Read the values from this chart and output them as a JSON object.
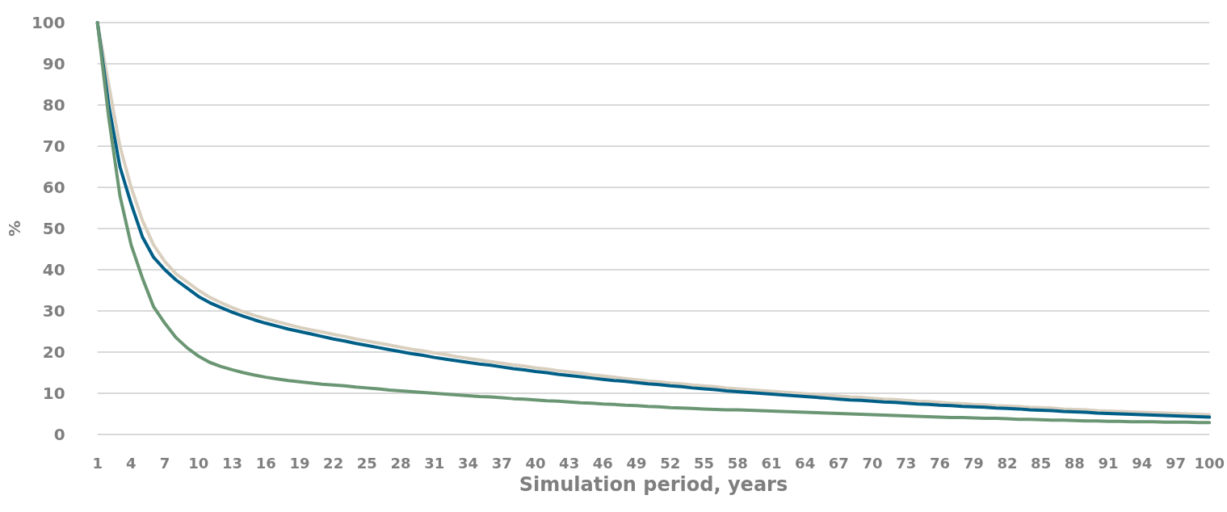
{
  "chart_data": {
    "type": "line",
    "xlabel": "Simulation period, years",
    "ylabel": "%",
    "categories": [
      "1",
      null,
      null,
      "4",
      null,
      null,
      "7",
      null,
      null,
      "10",
      null,
      null,
      "13",
      null,
      null,
      "16",
      null,
      null,
      "19",
      null,
      null,
      "22",
      null,
      null,
      "25",
      null,
      null,
      "28",
      null,
      null,
      "31",
      null,
      null,
      "34",
      null,
      null,
      "37",
      null,
      null,
      "40",
      null,
      null,
      "43",
      null,
      null,
      "46",
      null,
      null,
      "49",
      null,
      null,
      "52",
      null,
      null,
      "55",
      null,
      null,
      "58",
      null,
      null,
      "61",
      null,
      null,
      "64",
      null,
      null,
      "67",
      null,
      null,
      "70",
      null,
      null,
      "73",
      null,
      null,
      "76",
      null,
      null,
      "79",
      null,
      null,
      "82",
      null,
      null,
      "85",
      null,
      null,
      "88",
      null,
      null,
      "91",
      null,
      null,
      "94",
      null,
      null,
      "97",
      null,
      null,
      "100"
    ],
    "series": [
      {
        "color": "#d9cfbf",
        "values": [
          100,
          85,
          70,
          60,
          52,
          46,
          42,
          39,
          37,
          35,
          33.3,
          32,
          30.8,
          29.8,
          28.9,
          28.1,
          27.4,
          26.7,
          26,
          25.4,
          24.9,
          24.3,
          23.8,
          23.2,
          22.7,
          22.2,
          21.7,
          21.2,
          20.7,
          20.3,
          19.8,
          19.4,
          18.9,
          18.5,
          18.1,
          17.7,
          17.3,
          16.9,
          16.6,
          16.2,
          15.9,
          15.5,
          15.2,
          14.9,
          14.5,
          14.2,
          13.9,
          13.6,
          13.3,
          13,
          12.8,
          12.5,
          12.3,
          12,
          11.8,
          11.6,
          11.3,
          11.1,
          10.9,
          10.7,
          10.5,
          10.3,
          10.1,
          9.9,
          9.7,
          9.5,
          9.3,
          9.1,
          9,
          8.8,
          8.6,
          8.5,
          8.3,
          8.1,
          8,
          7.8,
          7.6,
          7.5,
          7.3,
          7.2,
          7,
          6.9,
          6.8,
          6.6,
          6.5,
          6.4,
          6.2,
          6.1,
          6,
          5.8,
          5.7,
          5.6,
          5.5,
          5.4,
          5.3,
          5.2,
          5.1,
          5,
          4.9,
          4.8
        ]
      },
      {
        "color": "#005f87",
        "values": [
          100,
          80,
          65,
          56,
          48,
          43,
          40,
          37.5,
          35.5,
          33.5,
          32,
          30.8,
          29.7,
          28.7,
          27.8,
          27,
          26.3,
          25.6,
          25,
          24.4,
          23.8,
          23.2,
          22.7,
          22.1,
          21.6,
          21.1,
          20.6,
          20.1,
          19.6,
          19.2,
          18.7,
          18.3,
          17.9,
          17.5,
          17.1,
          16.8,
          16.4,
          16,
          15.7,
          15.3,
          15,
          14.6,
          14.3,
          14,
          13.7,
          13.4,
          13.1,
          12.9,
          12.6,
          12.3,
          12.1,
          11.8,
          11.6,
          11.3,
          11.1,
          10.9,
          10.6,
          10.4,
          10.2,
          10,
          9.8,
          9.6,
          9.4,
          9.2,
          9,
          8.8,
          8.6,
          8.4,
          8.3,
          8.1,
          7.9,
          7.8,
          7.6,
          7.4,
          7.3,
          7.1,
          7,
          6.8,
          6.7,
          6.6,
          6.4,
          6.3,
          6.2,
          6,
          5.9,
          5.8,
          5.6,
          5.5,
          5.4,
          5.2,
          5.1,
          5,
          4.9,
          4.8,
          4.7,
          4.6,
          4.5,
          4.4,
          4.3,
          4.2
        ]
      },
      {
        "color": "#6a9673",
        "values": [
          100,
          77,
          58,
          46,
          38,
          31,
          27,
          23.5,
          21,
          19,
          17.5,
          16.5,
          15.7,
          15,
          14.4,
          13.9,
          13.5,
          13.1,
          12.8,
          12.5,
          12.2,
          12,
          11.8,
          11.5,
          11.3,
          11.1,
          10.8,
          10.6,
          10.4,
          10.2,
          10,
          9.8,
          9.6,
          9.4,
          9.2,
          9.1,
          8.9,
          8.7,
          8.6,
          8.4,
          8.2,
          8.1,
          7.9,
          7.7,
          7.6,
          7.4,
          7.3,
          7.1,
          7,
          6.8,
          6.7,
          6.5,
          6.4,
          6.3,
          6.2,
          6.1,
          6,
          6,
          5.9,
          5.8,
          5.7,
          5.6,
          5.5,
          5.4,
          5.3,
          5.2,
          5.1,
          5,
          4.9,
          4.8,
          4.7,
          4.6,
          4.5,
          4.4,
          4.3,
          4.2,
          4.1,
          4.1,
          4,
          3.9,
          3.9,
          3.8,
          3.7,
          3.7,
          3.6,
          3.5,
          3.5,
          3.4,
          3.3,
          3.3,
          3.2,
          3.2,
          3.1,
          3.1,
          3.1,
          3,
          3,
          3,
          2.9,
          2.9
        ]
      }
    ],
    "ylim": [
      0,
      100
    ],
    "yticks": [
      0,
      10,
      20,
      30,
      40,
      50,
      60,
      70,
      80,
      90,
      100
    ],
    "grid": "y",
    "marker": "none",
    "line_style": "solid"
  }
}
